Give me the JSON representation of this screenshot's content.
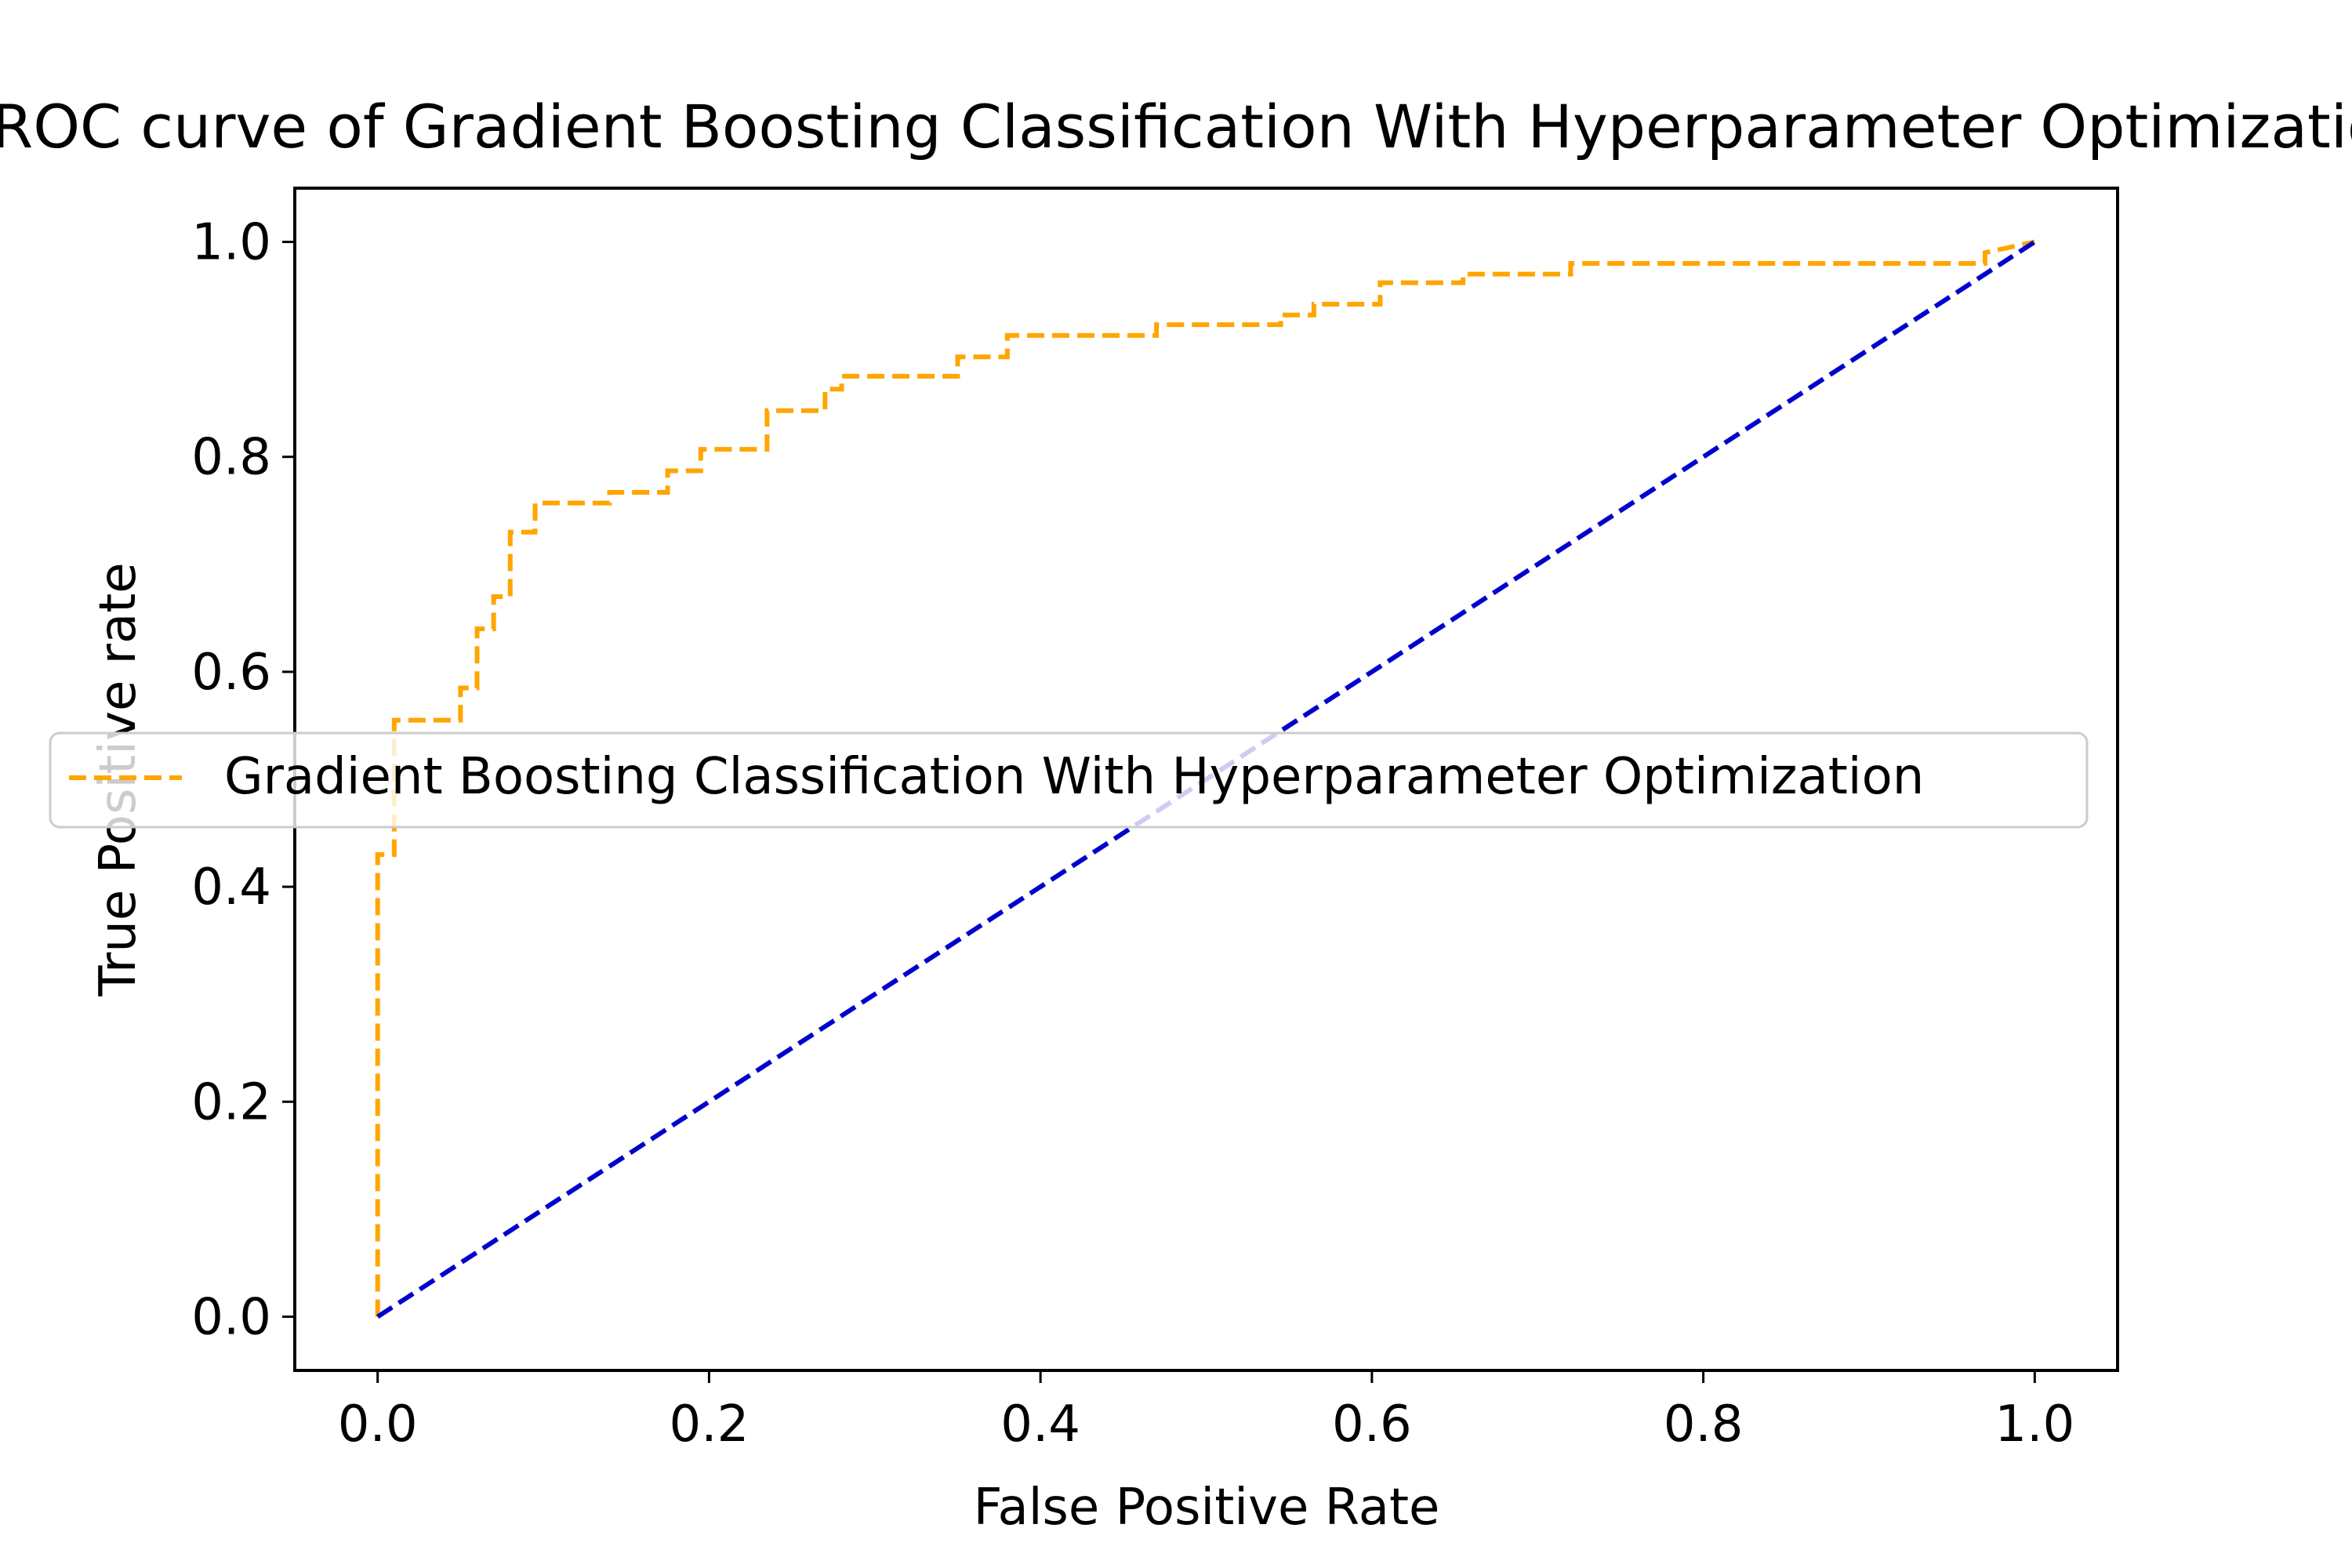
{
  "chart_data": {
    "type": "line",
    "title": "ROC curve of Gradient Boosting Classification With Hyperparameter Optimization",
    "xlabel": "False Positive Rate",
    "ylabel": "True Positive rate",
    "xlim": [
      -0.05,
      1.05
    ],
    "ylim": [
      -0.05,
      1.05
    ],
    "xticks": [
      "0.0",
      "0.2",
      "0.4",
      "0.6",
      "0.8",
      "1.0"
    ],
    "yticks": [
      "0.0",
      "0.2",
      "0.4",
      "0.6",
      "0.8",
      "1.0"
    ],
    "grid": false,
    "legend_position": "center-left",
    "series": [
      {
        "name": "Gradient Boosting Classification With Hyperparameter Optimization",
        "color": "#ffa500",
        "style": "dashed",
        "x": [
          0.0,
          0.0,
          0.01,
          0.01,
          0.05,
          0.05,
          0.06,
          0.06,
          0.07,
          0.07,
          0.08,
          0.08,
          0.095,
          0.095,
          0.14,
          0.14,
          0.175,
          0.175,
          0.195,
          0.195,
          0.235,
          0.235,
          0.27,
          0.27,
          0.28,
          0.28,
          0.35,
          0.35,
          0.38,
          0.38,
          0.47,
          0.47,
          0.545,
          0.545,
          0.565,
          0.565,
          0.605,
          0.605,
          0.655,
          0.655,
          0.72,
          0.72,
          0.97,
          0.97,
          1.0
        ],
        "y": [
          0.0,
          0.43,
          0.43,
          0.555,
          0.555,
          0.585,
          0.585,
          0.64,
          0.64,
          0.67,
          0.67,
          0.73,
          0.73,
          0.757,
          0.757,
          0.767,
          0.767,
          0.787,
          0.787,
          0.807,
          0.807,
          0.843,
          0.843,
          0.863,
          0.863,
          0.875,
          0.875,
          0.893,
          0.893,
          0.913,
          0.913,
          0.923,
          0.923,
          0.932,
          0.932,
          0.942,
          0.942,
          0.962,
          0.962,
          0.97,
          0.97,
          0.98,
          0.98,
          0.99,
          1.0
        ]
      },
      {
        "name": "",
        "color": "#0000cc",
        "style": "dashed",
        "x": [
          0.0,
          1.0
        ],
        "y": [
          0.0,
          1.0
        ]
      }
    ]
  }
}
